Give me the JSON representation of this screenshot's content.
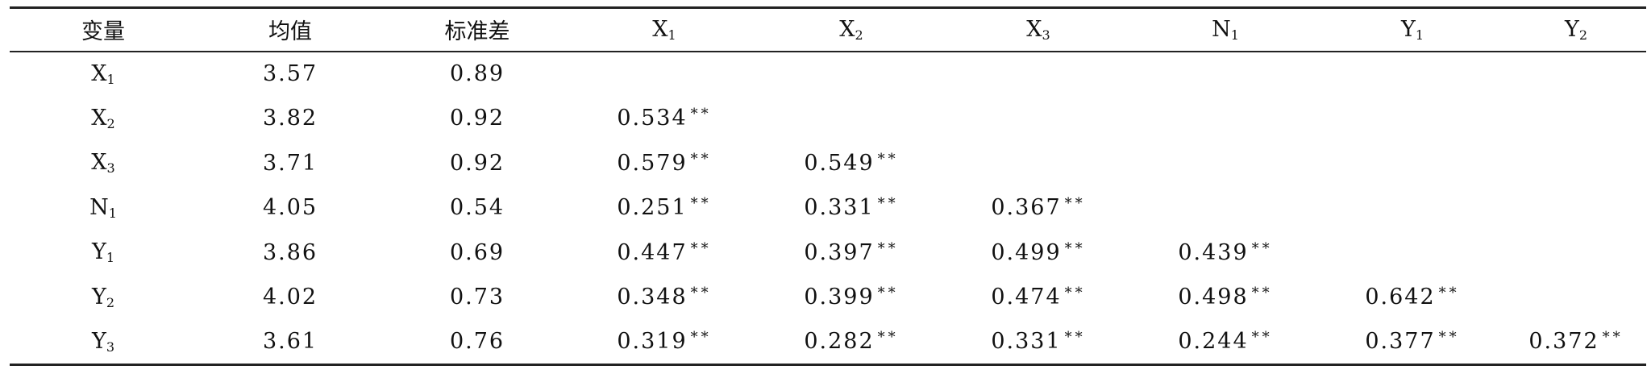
{
  "table": {
    "headers": [
      {
        "base": "变量",
        "sub": ""
      },
      {
        "base": "均值",
        "sub": ""
      },
      {
        "base": "标准差",
        "sub": ""
      },
      {
        "base": "X",
        "sub": "1"
      },
      {
        "base": "X",
        "sub": "2"
      },
      {
        "base": "X",
        "sub": "3"
      },
      {
        "base": "N",
        "sub": "1"
      },
      {
        "base": "Y",
        "sub": "1"
      },
      {
        "base": "Y",
        "sub": "2"
      }
    ],
    "rows": [
      {
        "var": {
          "base": "X",
          "sub": "1"
        },
        "mean": "3.57",
        "sd": "0.89",
        "corr": []
      },
      {
        "var": {
          "base": "X",
          "sub": "2"
        },
        "mean": "3.82",
        "sd": "0.92",
        "corr": [
          "0.534"
        ]
      },
      {
        "var": {
          "base": "X",
          "sub": "3"
        },
        "mean": "3.71",
        "sd": "0.92",
        "corr": [
          "0.579",
          "0.549"
        ]
      },
      {
        "var": {
          "base": "N",
          "sub": "1"
        },
        "mean": "4.05",
        "sd": "0.54",
        "corr": [
          "0.251",
          "0.331",
          "0.367"
        ]
      },
      {
        "var": {
          "base": "Y",
          "sub": "1"
        },
        "mean": "3.86",
        "sd": "0.69",
        "corr": [
          "0.447",
          "0.397",
          "0.499",
          "0.439"
        ]
      },
      {
        "var": {
          "base": "Y",
          "sub": "2"
        },
        "mean": "4.02",
        "sd": "0.73",
        "corr": [
          "0.348",
          "0.399",
          "0.474",
          "0.498",
          "0.642"
        ]
      },
      {
        "var": {
          "base": "Y",
          "sub": "3"
        },
        "mean": "3.61",
        "sd": "0.76",
        "corr": [
          "0.319",
          "0.282",
          "0.331",
          "0.244",
          "0.377",
          "0.372"
        ]
      }
    ],
    "significance_marker": "**"
  }
}
